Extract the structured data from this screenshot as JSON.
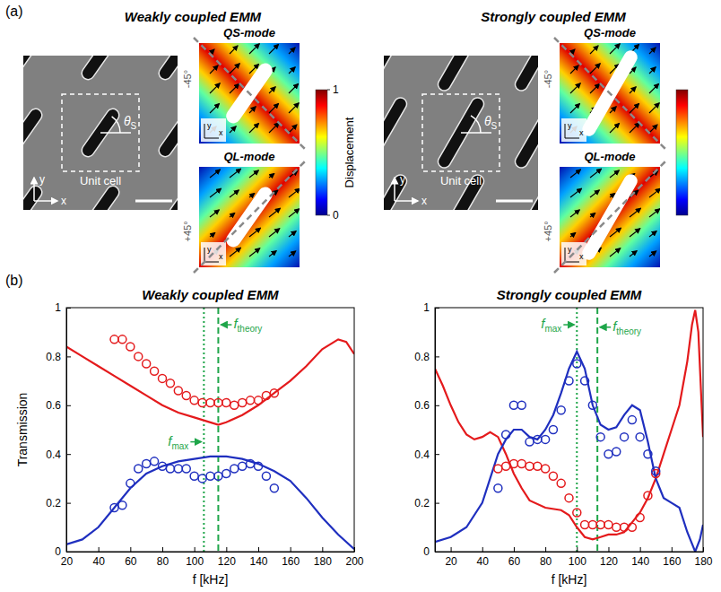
{
  "panel_labels": [
    "(a)",
    "(b)"
  ],
  "diagram": {
    "groups": [
      {
        "title": "Weakly coupled EMM",
        "unit_cell": "Unit cell",
        "angle": {
          "symbol": "θ",
          "subscript": "S"
        },
        "axis_labels": {
          "y": "y",
          "x": "x"
        },
        "modes": [
          {
            "title": "QS-mode",
            "line_label": "-45°"
          },
          {
            "title": "QL-mode",
            "line_label": "+45°"
          }
        ]
      },
      {
        "title": "Strongly coupled EMM",
        "unit_cell": "Unit cell",
        "angle": {
          "symbol": "θ",
          "subscript": "S"
        },
        "axis_labels": {
          "y": "y",
          "x": "x"
        },
        "modes": [
          {
            "title": "QS-mode",
            "line_label": "-45°"
          },
          {
            "title": "QL-mode",
            "line_label": "+45°"
          }
        ]
      }
    ],
    "colorbar": {
      "label": "Displacement",
      "range": [
        0,
        1
      ],
      "ticks": [
        0,
        1
      ]
    }
  },
  "chart_data": [
    {
      "type": "line",
      "title": "Weakly coupled EMM",
      "x_label": "f [kHz]",
      "y_label": "Transmission",
      "xlim": [
        20,
        200
      ],
      "xticks": [
        20,
        40,
        60,
        80,
        100,
        120,
        140,
        160,
        180,
        200
      ],
      "ylim": [
        0,
        1
      ],
      "yticks": [
        0,
        0.2,
        0.4,
        0.6,
        0.8,
        1
      ],
      "series": [
        {
          "type": "line",
          "color": "#e41a1c",
          "line_style": "solid",
          "x": [
            20,
            30,
            40,
            50,
            60,
            70,
            80,
            90,
            100,
            110,
            115,
            120,
            130,
            140,
            150,
            160,
            170,
            180,
            190,
            195,
            200
          ],
          "values": [
            0.84,
            0.8,
            0.76,
            0.72,
            0.68,
            0.64,
            0.6,
            0.57,
            0.55,
            0.53,
            0.52,
            0.53,
            0.56,
            0.6,
            0.65,
            0.7,
            0.76,
            0.83,
            0.87,
            0.86,
            0.81
          ]
        },
        {
          "type": "line",
          "color": "#1f2fbf",
          "line_style": "solid",
          "x": [
            20,
            30,
            40,
            50,
            60,
            70,
            80,
            90,
            100,
            110,
            120,
            130,
            140,
            150,
            160,
            170,
            180,
            190,
            200
          ],
          "values": [
            0.03,
            0.05,
            0.1,
            0.18,
            0.26,
            0.32,
            0.35,
            0.37,
            0.38,
            0.39,
            0.39,
            0.38,
            0.36,
            0.33,
            0.29,
            0.22,
            0.14,
            0.07,
            0.01
          ]
        },
        {
          "type": "scatter",
          "color": "#e41a1c",
          "marker": "circle",
          "x": [
            50,
            55,
            60,
            65,
            70,
            75,
            80,
            85,
            90,
            95,
            100,
            105,
            110,
            115,
            120,
            125,
            130,
            135,
            140,
            145,
            150
          ],
          "values": [
            0.87,
            0.87,
            0.84,
            0.8,
            0.77,
            0.74,
            0.71,
            0.69,
            0.66,
            0.64,
            0.62,
            0.61,
            0.61,
            0.61,
            0.61,
            0.6,
            0.61,
            0.62,
            0.62,
            0.64,
            0.65
          ]
        },
        {
          "type": "scatter",
          "color": "#1f2fbf",
          "marker": "circle",
          "x": [
            50,
            55,
            60,
            65,
            70,
            75,
            80,
            85,
            90,
            95,
            100,
            105,
            110,
            115,
            120,
            125,
            130,
            135,
            140,
            145,
            150
          ],
          "values": [
            0.18,
            0.19,
            0.28,
            0.34,
            0.36,
            0.37,
            0.35,
            0.34,
            0.34,
            0.34,
            0.31,
            0.3,
            0.31,
            0.31,
            0.32,
            0.34,
            0.35,
            0.36,
            0.35,
            0.31,
            0.26
          ]
        }
      ],
      "annotations": [
        {
          "text": "f",
          "subscript": "max",
          "x": 106,
          "y": 0.45,
          "line_style": "dotted",
          "color": "#1fa64a"
        },
        {
          "text": "f",
          "subscript": "theory",
          "x": 115,
          "y": 0.93,
          "line_style": "dashed",
          "color": "#1fa64a"
        }
      ]
    },
    {
      "type": "line",
      "title": "Strongly coupled EMM",
      "x_label": "f [kHz]",
      "xlim": [
        10,
        180
      ],
      "xticks": [
        20,
        40,
        60,
        80,
        100,
        120,
        140,
        160,
        180
      ],
      "ylim": [
        0,
        1
      ],
      "yticks": [
        0,
        0.2,
        0.4,
        0.6,
        0.8,
        1
      ],
      "series": [
        {
          "type": "line",
          "color": "#e41a1c",
          "line_style": "solid",
          "x": [
            10,
            15,
            20,
            25,
            30,
            35,
            40,
            45,
            50,
            55,
            60,
            65,
            70,
            80,
            90,
            95,
            100,
            105,
            110,
            115,
            120,
            125,
            130,
            135,
            140,
            145,
            150,
            155,
            160,
            165,
            170,
            173,
            175,
            177,
            180
          ],
          "values": [
            0.75,
            0.68,
            0.6,
            0.53,
            0.48,
            0.46,
            0.47,
            0.49,
            0.47,
            0.4,
            0.32,
            0.26,
            0.21,
            0.18,
            0.17,
            0.15,
            0.1,
            0.06,
            0.05,
            0.06,
            0.07,
            0.07,
            0.08,
            0.12,
            0.16,
            0.22,
            0.3,
            0.4,
            0.5,
            0.6,
            0.78,
            0.93,
            0.99,
            0.9,
            0.47
          ]
        },
        {
          "type": "line",
          "color": "#1f2fbf",
          "line_style": "solid",
          "x": [
            10,
            20,
            30,
            40,
            45,
            50,
            55,
            60,
            65,
            70,
            75,
            80,
            85,
            90,
            95,
            100,
            105,
            110,
            115,
            120,
            125,
            130,
            135,
            140,
            145,
            150,
            155,
            160,
            165,
            170,
            175,
            178,
            180
          ],
          "values": [
            0.04,
            0.06,
            0.1,
            0.2,
            0.3,
            0.4,
            0.46,
            0.5,
            0.5,
            0.47,
            0.46,
            0.5,
            0.56,
            0.65,
            0.75,
            0.82,
            0.75,
            0.6,
            0.52,
            0.5,
            0.51,
            0.56,
            0.6,
            0.58,
            0.45,
            0.3,
            0.22,
            0.2,
            0.18,
            0.08,
            0,
            0.05,
            0.11
          ]
        },
        {
          "type": "scatter",
          "color": "#e41a1c",
          "marker": "circle",
          "x": [
            50,
            55,
            60,
            65,
            70,
            75,
            80,
            85,
            90,
            95,
            100,
            105,
            110,
            115,
            120,
            125,
            130,
            135,
            140,
            145,
            150
          ],
          "values": [
            0.34,
            0.35,
            0.36,
            0.36,
            0.35,
            0.35,
            0.34,
            0.31,
            0.28,
            0.22,
            0.16,
            0.11,
            0.11,
            0.11,
            0.11,
            0.1,
            0.1,
            0.1,
            0.14,
            0.23,
            0.32
          ]
        },
        {
          "type": "scatter",
          "color": "#1f2fbf",
          "marker": "circle",
          "x": [
            50,
            55,
            60,
            65,
            70,
            75,
            80,
            85,
            90,
            95,
            100,
            105,
            110,
            115,
            120,
            125,
            130,
            135,
            140,
            145,
            150
          ],
          "values": [
            0.26,
            0.48,
            0.6,
            0.6,
            0.45,
            0.46,
            0.46,
            0.5,
            0.58,
            0.7,
            0.77,
            0.7,
            0.6,
            0.47,
            0.4,
            0.41,
            0.47,
            0.54,
            0.47,
            0.4,
            0.33
          ]
        }
      ],
      "annotations": [
        {
          "text": "f",
          "subscript": "max",
          "x": 100,
          "y": 0.93,
          "line_style": "dotted",
          "color": "#1fa64a"
        },
        {
          "text": "f",
          "subscript": "theory",
          "x": 113,
          "y": 0.92,
          "line_style": "dashed",
          "color": "#1fa64a"
        }
      ]
    }
  ]
}
